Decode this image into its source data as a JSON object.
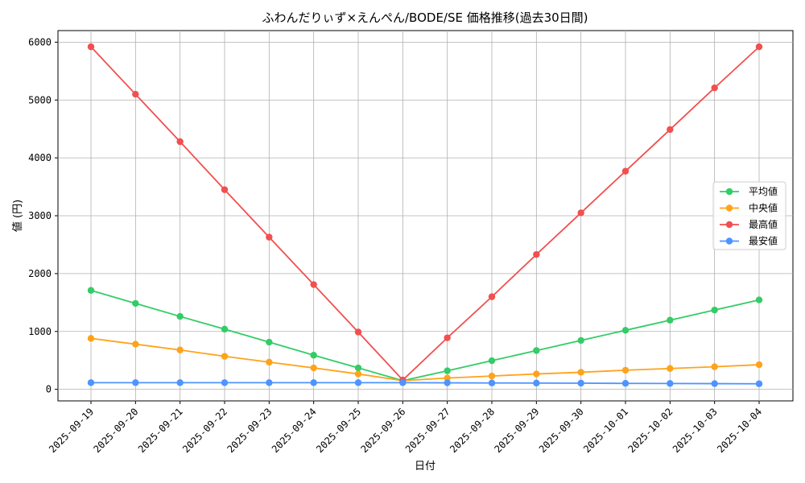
{
  "chart_data": {
    "type": "line",
    "title": "ふわんだりぃず×えんぺん/BODE/SE 価格推移(過去30日間)",
    "xlabel": "日付",
    "ylabel": "値 (円)",
    "ylim": [
      -200,
      6200
    ],
    "yticks": [
      0,
      1000,
      2000,
      3000,
      4000,
      5000,
      6000
    ],
    "grid": true,
    "legend_position": "center-right",
    "categories": [
      "2025-09-19",
      "2025-09-20",
      "2025-09-21",
      "2025-09-22",
      "2025-09-23",
      "2025-09-24",
      "2025-09-25",
      "2025-09-26",
      "2025-09-27",
      "2025-09-28",
      "2025-09-29",
      "2025-09-30",
      "2025-10-01",
      "2025-10-02",
      "2025-10-03",
      "2025-10-04"
    ],
    "series": [
      {
        "name": "平均値",
        "color": "#33cc66",
        "values": [
          1710,
          1485,
          1260,
          1040,
          815,
          590,
          370,
          150,
          320,
          495,
          670,
          845,
          1020,
          1195,
          1370,
          1545
        ]
      },
      {
        "name": "中央値",
        "color": "#ffa31a",
        "values": [
          880,
          780,
          680,
          570,
          470,
          370,
          265,
          150,
          195,
          230,
          265,
          295,
          330,
          360,
          390,
          425
        ]
      },
      {
        "name": "最高値",
        "color": "#f24f4f",
        "values": [
          5920,
          5100,
          4280,
          3450,
          2630,
          1810,
          990,
          160,
          890,
          1600,
          2330,
          3050,
          3770,
          4490,
          5210,
          5920
        ]
      },
      {
        "name": "最安値",
        "color": "#4d94ff",
        "values": [
          115,
          115,
          115,
          115,
          115,
          115,
          115,
          115,
          112,
          110,
          108,
          106,
          103,
          101,
          98,
          96
        ]
      }
    ]
  }
}
